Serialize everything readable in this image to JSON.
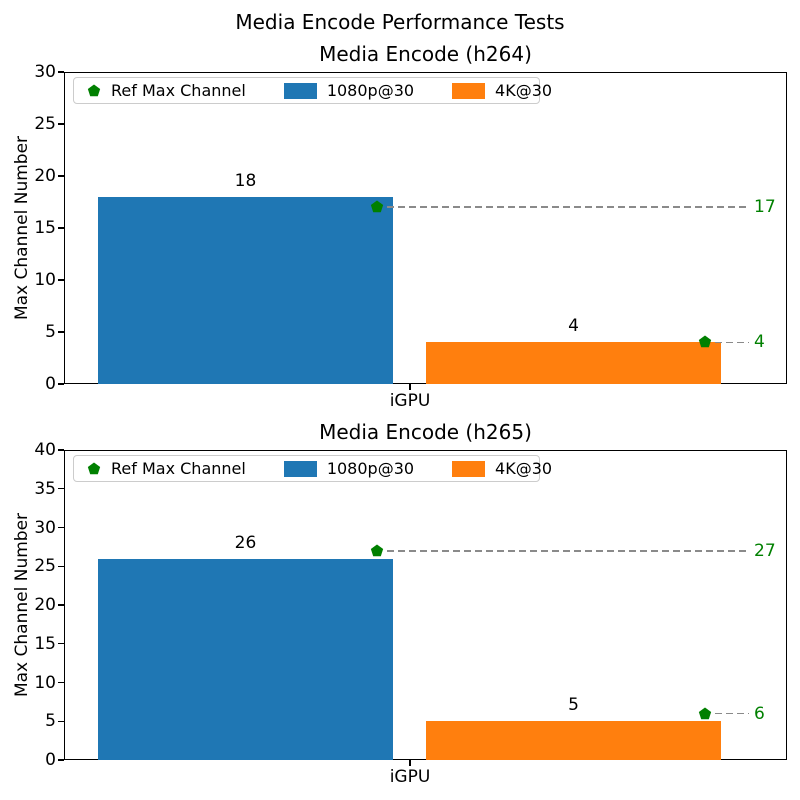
{
  "figure": {
    "suptitle": "Media Encode Performance Tests"
  },
  "colors": {
    "bar_1080p": "#1f77b4",
    "bar_4k": "#ff7f0e",
    "ref_green": "#008000",
    "dash_gray": "#8a8a8a",
    "text": "#000000",
    "legend_border": "#cccccc",
    "background": "#ffffff"
  },
  "chart_data": [
    {
      "type": "bar",
      "title": "Media Encode (h264)",
      "categories": [
        "iGPU"
      ],
      "xlabel": "",
      "ylabel": "Max Channel Number",
      "ylim": [
        0,
        30
      ],
      "ytick_step": 5,
      "grid": false,
      "legend_position": "upper left",
      "legend_ref_label": "Ref Max Channel",
      "ref_marker_shape": "pentagon",
      "series": [
        {
          "name": "1080p@30",
          "color": "#1f77b4",
          "values": [
            18
          ],
          "ref_values": [
            17
          ]
        },
        {
          "name": "4K@30",
          "color": "#ff7f0e",
          "values": [
            4
          ],
          "ref_values": [
            4
          ]
        }
      ]
    },
    {
      "type": "bar",
      "title": "Media Encode (h265)",
      "categories": [
        "iGPU"
      ],
      "xlabel": "",
      "ylabel": "Max Channel Number",
      "ylim": [
        0,
        40
      ],
      "ytick_step": 5,
      "grid": false,
      "legend_position": "upper left",
      "legend_ref_label": "Ref Max Channel",
      "ref_marker_shape": "pentagon",
      "series": [
        {
          "name": "1080p@30",
          "color": "#1f77b4",
          "values": [
            26
          ],
          "ref_values": [
            27
          ]
        },
        {
          "name": "4K@30",
          "color": "#ff7f0e",
          "values": [
            5
          ],
          "ref_values": [
            6
          ]
        }
      ]
    }
  ]
}
